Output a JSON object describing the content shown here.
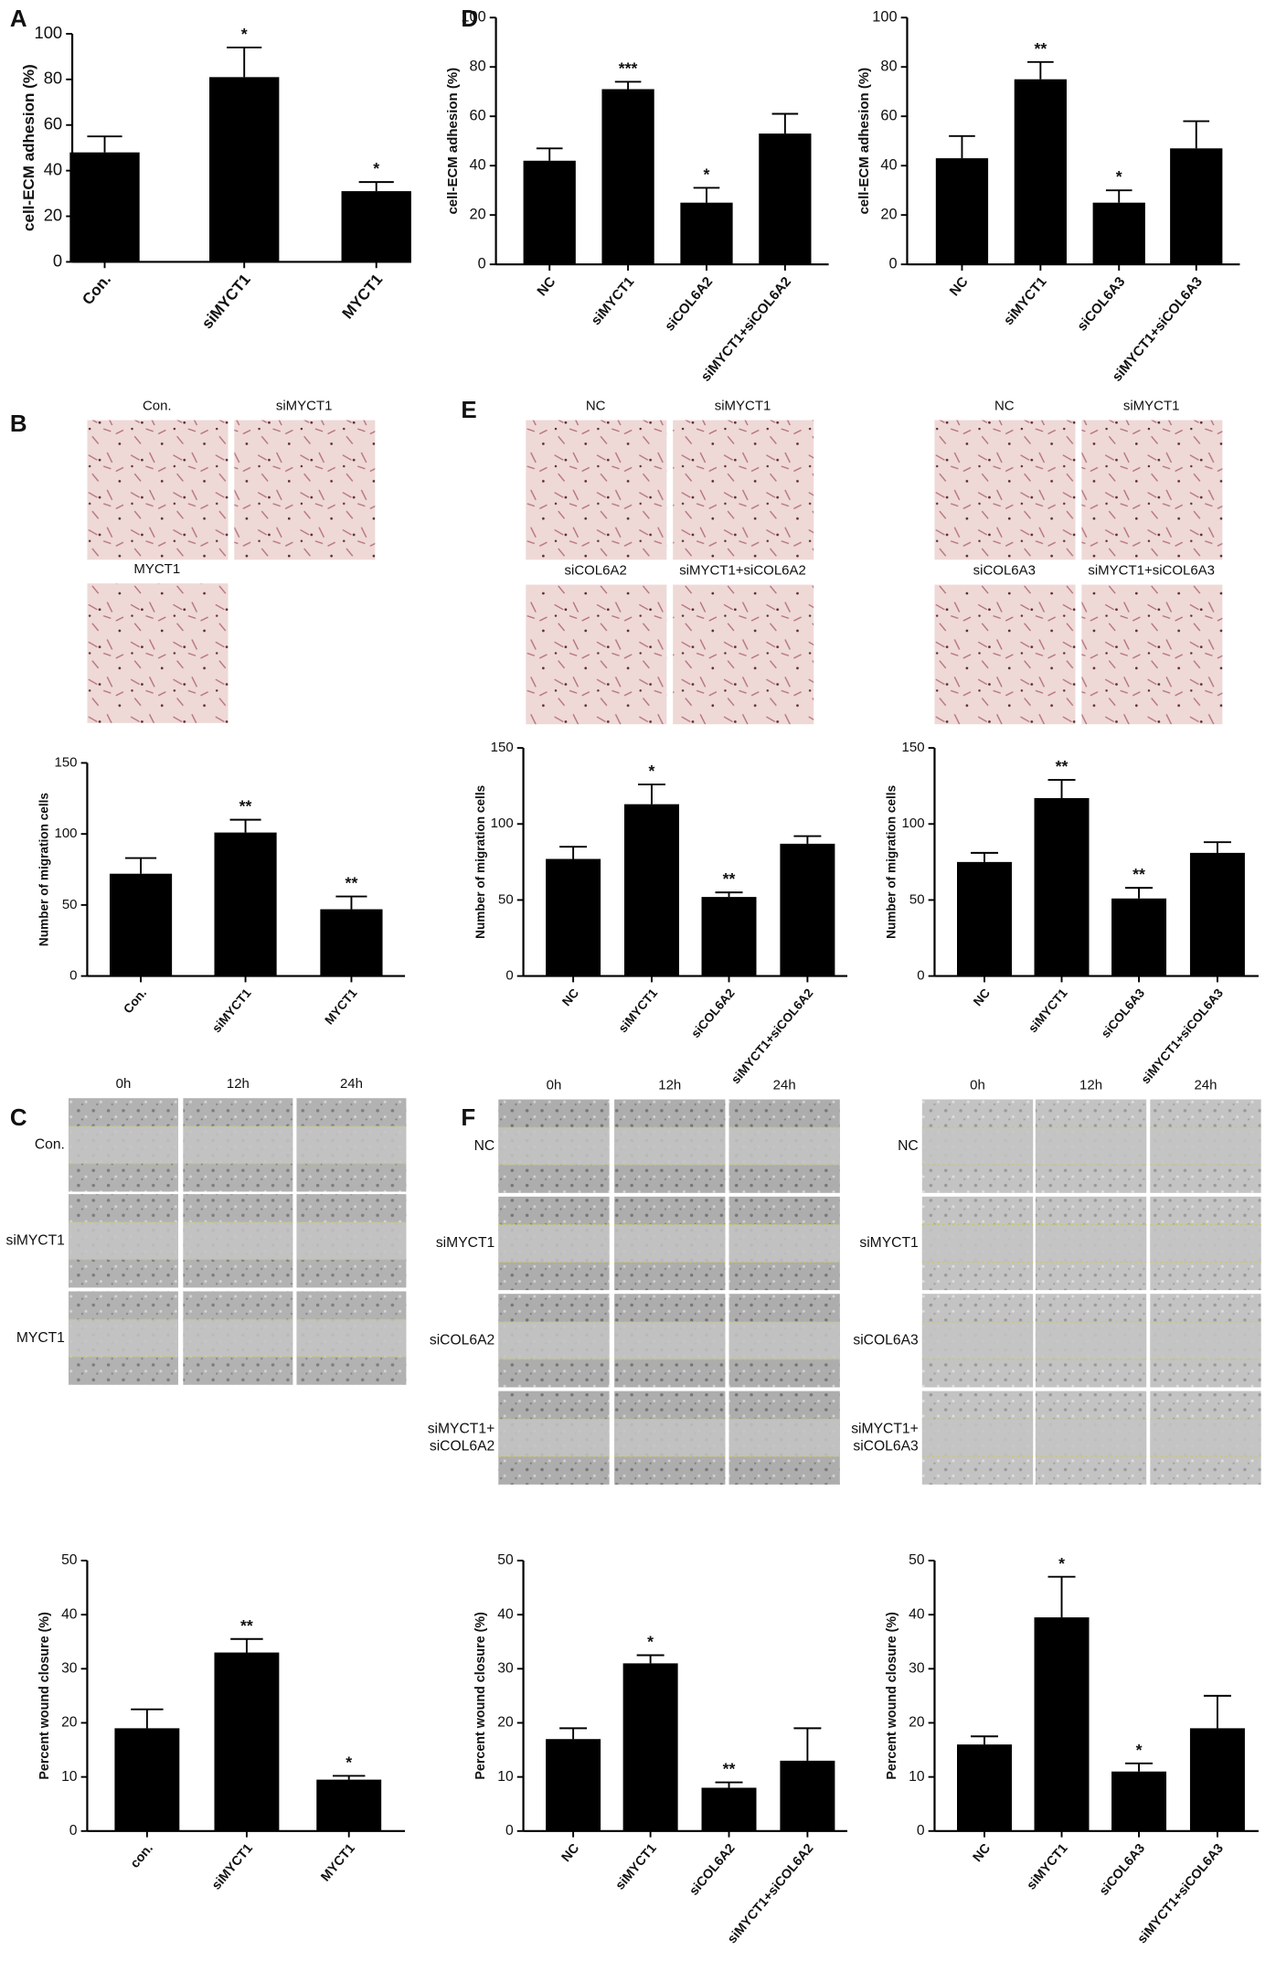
{
  "panel_labels": [
    "A",
    "B",
    "C",
    "D",
    "E",
    "F"
  ],
  "migration_images": [
    {
      "labels": [
        "Con.",
        "siMYCT1",
        "MYCT1"
      ]
    },
    {
      "labels": [
        "NC",
        "siMYCT1",
        "siCOL6A2",
        "siMYCT1+siCOL6A2"
      ]
    },
    {
      "labels": [
        "NC",
        "siMYCT1",
        "siCOL6A3",
        "siMYCT1+siCOL6A3"
      ]
    }
  ],
  "wound_images": [
    {
      "time_labels": [
        "0h",
        "12h",
        "24h"
      ],
      "row_labels": [
        [
          "Con."
        ],
        [
          "siMYCT1"
        ],
        [
          "MYCT1"
        ]
      ]
    },
    {
      "time_labels": [
        "0h",
        "12h",
        "24h"
      ],
      "row_labels": [
        [
          "NC"
        ],
        [
          "siMYCT1"
        ],
        [
          "siCOL6A2"
        ],
        [
          "siMYCT1+",
          "siCOL6A2"
        ]
      ]
    },
    {
      "time_labels": [
        "0h",
        "12h",
        "24h"
      ],
      "row_labels": [
        [
          "NC"
        ],
        [
          "siMYCT1"
        ],
        [
          "siCOL6A3"
        ],
        [
          "siMYCT1+",
          "siCOL6A3"
        ]
      ]
    }
  ],
  "chart_data": [
    {
      "type": "bar",
      "y_label": "cell-ECM adhesion (%)",
      "categories": [
        "Con.",
        "siMYCT1",
        "MYCT1"
      ],
      "values": [
        48,
        81,
        31
      ],
      "errors": [
        7,
        13,
        4
      ],
      "annotations": [
        null,
        "*",
        "*"
      ],
      "color": "#000000",
      "ylim": [
        0,
        100
      ],
      "yticks": [
        0,
        20,
        40,
        60,
        80,
        100
      ]
    },
    {
      "type": "bar",
      "y_label": "cell-ECM adhesion (%)",
      "categories": [
        "NC",
        "siMYCT1",
        "siCOL6A2",
        "siMYCT1+siCOL6A2"
      ],
      "values": [
        42,
        71,
        25,
        53
      ],
      "errors": [
        5,
        3,
        6,
        8
      ],
      "annotations": [
        null,
        "***",
        "*",
        null
      ],
      "color": "#000000",
      "ylim": [
        0,
        100
      ],
      "yticks": [
        0,
        20,
        40,
        60,
        80,
        100
      ]
    },
    {
      "type": "bar",
      "y_label": "cell-ECM adhesion (%)",
      "categories": [
        "NC",
        "siMYCT1",
        "siCOL6A3",
        "siMYCT1+siCOL6A3"
      ],
      "values": [
        43,
        75,
        25,
        47
      ],
      "errors": [
        9,
        7,
        5,
        11
      ],
      "annotations": [
        null,
        "**",
        "*",
        null
      ],
      "color": "#000000",
      "ylim": [
        0,
        100
      ],
      "yticks": [
        0,
        20,
        40,
        60,
        80,
        100
      ]
    },
    {
      "type": "bar",
      "y_label": "Number of migration cells",
      "categories": [
        "Con.",
        "siMYCT1",
        "MYCT1"
      ],
      "values": [
        72,
        101,
        47
      ],
      "errors": [
        11,
        9,
        9
      ],
      "annotations": [
        null,
        "**",
        "**"
      ],
      "color": "#000000",
      "ylim": [
        0,
        150
      ],
      "yticks": [
        0,
        50,
        100,
        150
      ]
    },
    {
      "type": "bar",
      "y_label": "Number of migration cells",
      "categories": [
        "NC",
        "siMYCT1",
        "siCOL6A2",
        "siMYCT1+siCOL6A2"
      ],
      "values": [
        77,
        113,
        52,
        87
      ],
      "errors": [
        8,
        13,
        3,
        5
      ],
      "annotations": [
        null,
        "*",
        "**",
        null
      ],
      "color": "#000000",
      "ylim": [
        0,
        150
      ],
      "yticks": [
        0,
        50,
        100,
        150
      ]
    },
    {
      "type": "bar",
      "y_label": "Number of migration cells",
      "categories": [
        "NC",
        "siMYCT1",
        "siCOL6A3",
        "siMYCT1+siCOL6A3"
      ],
      "values": [
        75,
        117,
        51,
        81
      ],
      "errors": [
        6,
        12,
        7,
        7
      ],
      "annotations": [
        null,
        "**",
        "**",
        null
      ],
      "color": "#000000",
      "ylim": [
        0,
        150
      ],
      "yticks": [
        0,
        50,
        100,
        150
      ]
    },
    {
      "type": "bar",
      "y_label": "Percent wound closure (%)",
      "categories": [
        "con.",
        "siMYCT1",
        "MYCT1"
      ],
      "values": [
        19,
        33,
        9.5
      ],
      "errors": [
        3.5,
        2.5,
        0.7
      ],
      "annotations": [
        null,
        "**",
        "*"
      ],
      "color": "#000000",
      "ylim": [
        0,
        50
      ],
      "yticks": [
        0,
        10,
        20,
        30,
        40,
        50
      ]
    },
    {
      "type": "bar",
      "y_label": "Percent wound closure (%)",
      "categories": [
        "NC",
        "siMYCT1",
        "siCOL6A2",
        "siMYCT1+siCOL6A2"
      ],
      "values": [
        17,
        31,
        8,
        13
      ],
      "errors": [
        2,
        1.5,
        1,
        6
      ],
      "annotations": [
        null,
        "*",
        "**",
        null
      ],
      "color": "#000000",
      "ylim": [
        0,
        50
      ],
      "yticks": [
        0,
        10,
        20,
        30,
        40,
        50
      ]
    },
    {
      "type": "bar",
      "y_label": "Percent wound closure (%)",
      "categories": [
        "NC",
        "siMYCT1",
        "siCOL6A3",
        "siMYCT1+siCOL6A3"
      ],
      "values": [
        16,
        39.5,
        11,
        19
      ],
      "errors": [
        1.5,
        7.5,
        1.5,
        6
      ],
      "annotations": [
        null,
        "*",
        "*",
        null
      ],
      "color": "#000000",
      "ylim": [
        0,
        50
      ],
      "yticks": [
        0,
        10,
        20,
        30,
        40,
        50
      ]
    }
  ]
}
